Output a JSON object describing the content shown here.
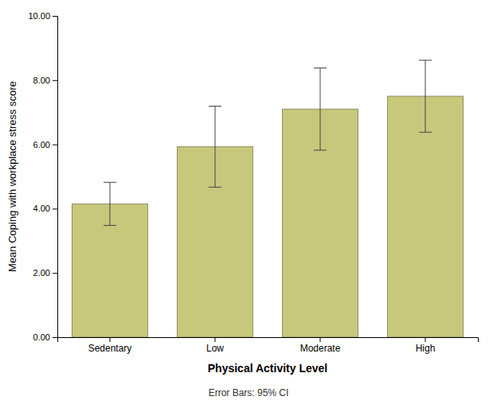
{
  "chart_data": {
    "type": "bar",
    "categories": [
      "Sedentary",
      "Low",
      "Moderate",
      "High"
    ],
    "values": [
      4.15,
      5.93,
      7.1,
      7.5
    ],
    "ci_lower": [
      3.48,
      4.67,
      5.82,
      6.38
    ],
    "ci_upper": [
      4.82,
      7.19,
      8.38,
      8.62
    ],
    "color": "#c8c87d",
    "x_label": "Physical Activity Level",
    "y_label": "Mean Coping with workplace stress score",
    "annotations": [
      "Error Bars: 95% CI"
    ],
    "ylim": [
      0.0,
      10.0
    ],
    "yticks": [
      {
        "value": 0.0,
        "label": "0.00"
      },
      {
        "value": 2.0,
        "label": "2.00"
      },
      {
        "value": 4.0,
        "label": "4.00"
      },
      {
        "value": 6.0,
        "label": "6.00"
      },
      {
        "value": 8.0,
        "label": "8.00"
      },
      {
        "value": 10.0,
        "label": "10.00"
      }
    ],
    "grid": false
  }
}
